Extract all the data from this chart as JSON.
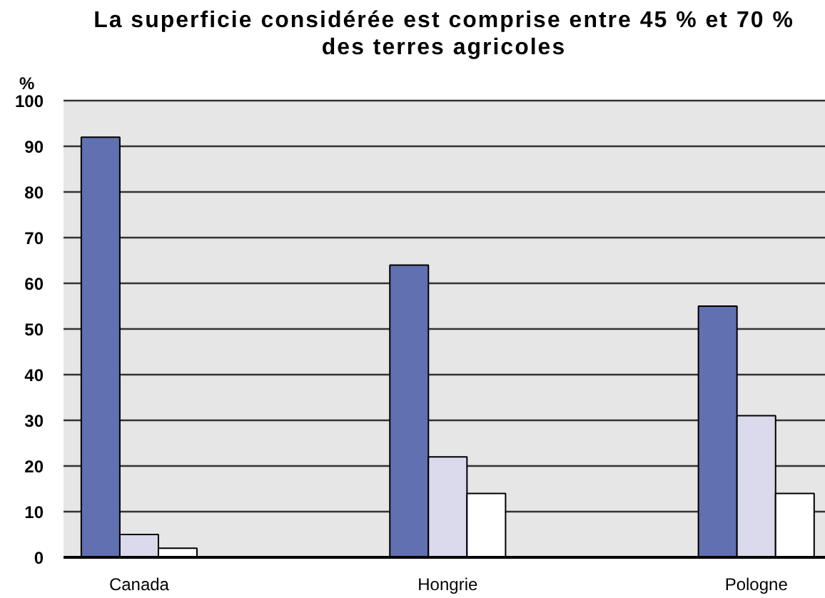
{
  "chart_data": {
    "type": "bar",
    "title": "La superficie considérée est comprise entre 45 % et 70 %\ndes terres agricoles",
    "ylabel": "%",
    "categories": [
      "Canada",
      "Hongrie",
      "Pologne"
    ],
    "series": [
      {
        "color": "#6070b0",
        "values": [
          92,
          64,
          55
        ]
      },
      {
        "color": "#dadaec",
        "values": [
          5,
          22,
          31
        ]
      },
      {
        "color": "#ffffff",
        "values": [
          2,
          14,
          14
        ]
      }
    ],
    "ylim": [
      0,
      100
    ],
    "yticks": [
      0,
      10,
      20,
      30,
      40,
      50,
      60,
      70,
      80,
      90,
      100
    ],
    "grid": "y"
  }
}
